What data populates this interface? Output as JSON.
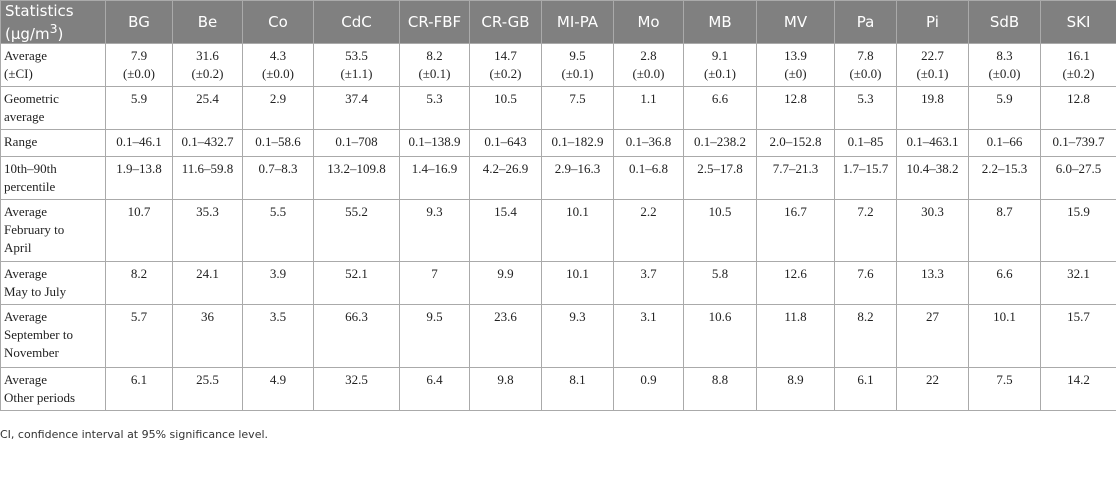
{
  "table": {
    "header": {
      "first": {
        "text": "Statistics",
        "unit": "(μg/m",
        "sup": "3",
        "close": ")"
      },
      "columns": [
        "BG",
        "Be",
        "Co",
        "CdC",
        "CR-FBF",
        "CR-GB",
        "MI-PA",
        "Mo",
        "MB",
        "MV",
        "Pa",
        "Pi",
        "SdB",
        "SKI"
      ]
    },
    "rows": [
      {
        "label": [
          "Average",
          "(±CI)"
        ],
        "cells": [
          [
            "7.9",
            "(±0.0)"
          ],
          [
            "31.6",
            "(±0.2)"
          ],
          [
            "4.3",
            "(±0.0)"
          ],
          [
            "53.5",
            "(±1.1)"
          ],
          [
            "8.2",
            "(±0.1)"
          ],
          [
            "14.7",
            "(±0.2)"
          ],
          [
            "9.5",
            "(±0.1)"
          ],
          [
            "2.8",
            "(±0.0)"
          ],
          [
            "9.1",
            "(±0.1)"
          ],
          [
            "13.9",
            "(±0)"
          ],
          [
            "7.8",
            "(±0.0)"
          ],
          [
            "22.7",
            "(±0.1)"
          ],
          [
            "8.3",
            "(±0.0)"
          ],
          [
            "16.1",
            "(±0.2)"
          ]
        ]
      },
      {
        "label": [
          "Geometric",
          "average"
        ],
        "cells": [
          "5.9",
          "25.4",
          "2.9",
          "37.4",
          "5.3",
          "10.5",
          "7.5",
          "1.1",
          "6.6",
          "12.8",
          "5.3",
          "19.8",
          "5.9",
          "12.8"
        ]
      },
      {
        "label": [
          "Range"
        ],
        "cells": [
          "0.1–46.1",
          "0.1–432.7",
          "0.1–58.6",
          "0.1–708",
          "0.1–138.9",
          "0.1–643",
          "0.1–182.9",
          "0.1–36.8",
          "0.1–238.2",
          "2.0–152.8",
          "0.1–85",
          "0.1–463.1",
          "0.1–66",
          "0.1–739.7"
        ]
      },
      {
        "label": [
          "10th–90th",
          "percentile"
        ],
        "cells": [
          "1.9–13.8",
          "11.6–59.8",
          "0.7–8.3",
          "13.2–109.8",
          "1.4–16.9",
          "4.2–26.9",
          "2.9–16.3",
          "0.1–6.8",
          "2.5–17.8",
          "7.7–21.3",
          "1.7–15.7",
          "10.4–38.2",
          "2.2–15.3",
          "6.0–27.5"
        ]
      },
      {
        "label": [
          "Average",
          "February to",
          "April"
        ],
        "cells": [
          "10.7",
          "35.3",
          "5.5",
          "55.2",
          "9.3",
          "15.4",
          "10.1",
          "2.2",
          "10.5",
          "16.7",
          "7.2",
          "30.3",
          "8.7",
          "15.9"
        ]
      },
      {
        "label": [
          "Average",
          "May to July"
        ],
        "cells": [
          "8.2",
          "24.1",
          "3.9",
          "52.1",
          "7",
          "9.9",
          "10.1",
          "3.7",
          "5.8",
          "12.6",
          "7.6",
          "13.3",
          "6.6",
          "32.1"
        ]
      },
      {
        "label": [
          "Average",
          "September to",
          "November"
        ],
        "cells": [
          "5.7",
          "36",
          "3.5",
          "66.3",
          "9.5",
          "23.6",
          "9.3",
          "3.1",
          "10.6",
          "11.8",
          "8.2",
          "27",
          "10.1",
          "15.7"
        ]
      },
      {
        "label": [
          "Average",
          "Other periods"
        ],
        "cells": [
          "6.1",
          "25.5",
          "4.9",
          "32.5",
          "6.4",
          "9.8",
          "8.1",
          "0.9",
          "8.8",
          "8.9",
          "6.1",
          "22",
          "7.5",
          "14.2"
        ]
      }
    ],
    "footnote": "CI, confidence interval at 95% significance level."
  }
}
